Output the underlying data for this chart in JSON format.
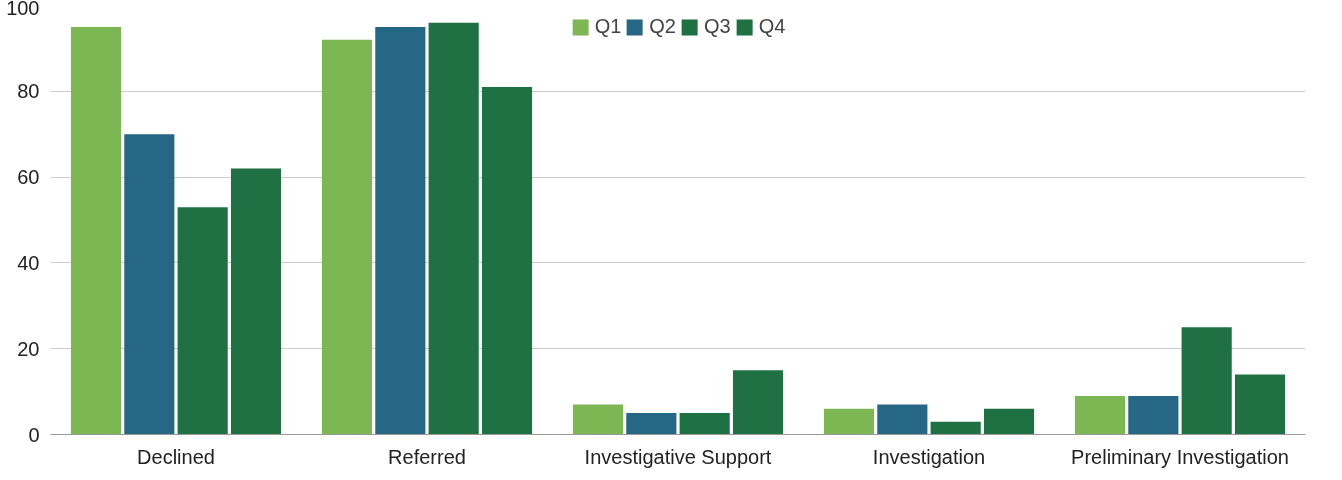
{
  "chart_data": {
    "type": "bar",
    "categories": [
      "Declined",
      "Referred",
      "Investigative Support",
      "Investigation",
      "Preliminary Investigation"
    ],
    "series": [
      {
        "name": "Q1",
        "color": "#7cb753",
        "values": [
          95,
          92,
          7,
          6,
          9
        ]
      },
      {
        "name": "Q2",
        "color": "#276786",
        "values": [
          70,
          95,
          5,
          7,
          9
        ]
      },
      {
        "name": "Q3",
        "color": "#1f7043",
        "values": [
          53,
          96,
          5,
          3,
          25
        ]
      },
      {
        "name": "Q4",
        "color": "#1f7043",
        "values": [
          62,
          81,
          15,
          6,
          14
        ]
      }
    ],
    "ylim": [
      0,
      100
    ],
    "yticks": [
      0,
      20,
      40,
      60,
      80,
      100
    ],
    "grid": "y",
    "legend": "top"
  }
}
